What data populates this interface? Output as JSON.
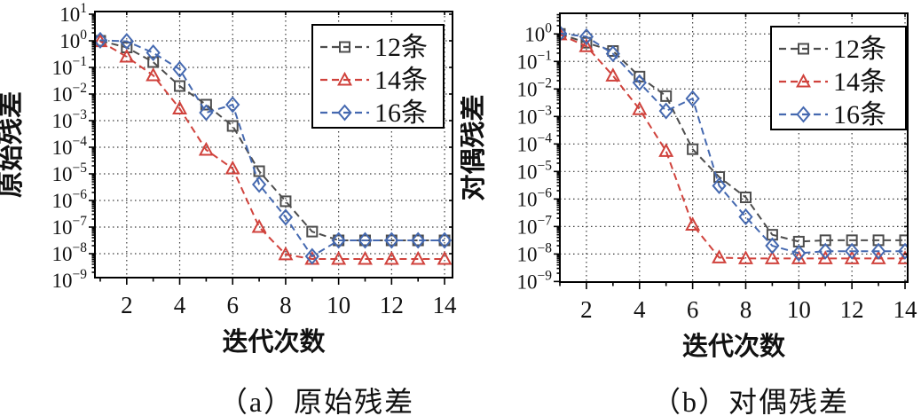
{
  "figure_title": "",
  "colors": {
    "background": "#ffffff",
    "axis": "#000000",
    "grid": "#1a1a1a",
    "series_12": "#4d4d4d",
    "series_14": "#d0423c",
    "series_16": "#4569b0",
    "text": "#111111"
  },
  "chart_data": [
    {
      "type": "line",
      "id": "primal-residual",
      "caption": "（a）原始残差",
      "xlabel": "迭代次数",
      "ylabel": "原始残差",
      "x": [
        1,
        2,
        3,
        4,
        5,
        6,
        7,
        8,
        9,
        10,
        11,
        12,
        13,
        14
      ],
      "x_ticks": [
        2,
        4,
        6,
        8,
        10,
        12,
        14
      ],
      "y_tick_exponents": [
        1,
        0,
        -1,
        -2,
        -3,
        -4,
        -5,
        -6,
        -7,
        -8,
        -9
      ],
      "y_scale": "log10",
      "ylim_log10": [
        -8.9,
        1.1
      ],
      "xlim": [
        0.8,
        14.3
      ],
      "grid": "dotted",
      "legend_position": "top-right",
      "series": [
        {
          "name": "12条",
          "marker": "square",
          "color": "#4d4d4d",
          "linestyle": "dashed",
          "values_log10": [
            0,
            -0.25,
            -0.8,
            -1.7,
            -2.4,
            -3.2,
            -4.9,
            -6.03,
            -7.17,
            -7.5,
            -7.5,
            -7.5,
            -7.5,
            -7.5
          ]
        },
        {
          "name": "14条",
          "marker": "triangle",
          "color": "#d0423c",
          "linestyle": "dashed",
          "values_log10": [
            -0.02,
            -0.6,
            -1.3,
            -2.55,
            -4.1,
            -4.8,
            -7.0,
            -8.03,
            -8.2,
            -8.2,
            -8.2,
            -8.2,
            -8.2,
            -8.2
          ]
        },
        {
          "name": "16条",
          "marker": "diamond",
          "color": "#4569b0",
          "linestyle": "dashed",
          "values_log10": [
            0.02,
            -0.02,
            -0.45,
            -1.07,
            -2.7,
            -2.4,
            -5.4,
            -6.63,
            -8.1,
            -7.5,
            -7.5,
            -7.5,
            -7.5,
            -7.5
          ]
        }
      ]
    },
    {
      "type": "line",
      "id": "dual-residual",
      "caption": "（b）对偶残差",
      "xlabel": "迭代次数",
      "ylabel": "对偶残差",
      "x": [
        1,
        2,
        3,
        4,
        5,
        6,
        7,
        8,
        9,
        10,
        11,
        12,
        13,
        14
      ],
      "x_ticks": [
        2,
        4,
        6,
        8,
        10,
        12,
        14
      ],
      "y_tick_exponents": [
        0,
        -1,
        -2,
        -3,
        -4,
        -5,
        -6,
        -7,
        -8,
        -9
      ],
      "y_scale": "log10",
      "ylim_log10": [
        -9.02,
        0.75
      ],
      "xlim": [
        1.0,
        14.1
      ],
      "grid": "dotted",
      "legend_position": "top-right",
      "series": [
        {
          "name": "12条",
          "marker": "square",
          "color": "#4d4d4d",
          "linestyle": "dashed",
          "values_log10": [
            0,
            -0.32,
            -0.62,
            -1.55,
            -2.26,
            -4.19,
            -5.2,
            -5.94,
            -7.3,
            -7.55,
            -7.5,
            -7.5,
            -7.5,
            -7.5
          ]
        },
        {
          "name": "14条",
          "marker": "triangle",
          "color": "#d0423c",
          "linestyle": "dashed",
          "values_log10": [
            -0.02,
            -0.45,
            -1.52,
            -2.74,
            -4.26,
            -6.94,
            -8.13,
            -8.16,
            -8.16,
            -8.16,
            -8.16,
            -8.16,
            -8.16,
            -8.16
          ]
        },
        {
          "name": "16条",
          "marker": "diamond",
          "color": "#4569b0",
          "linestyle": "dashed",
          "values_log10": [
            0.02,
            -0.1,
            -0.72,
            -1.77,
            -2.8,
            -2.35,
            -5.52,
            -6.65,
            -7.7,
            -7.97,
            -7.9,
            -7.9,
            -7.9,
            -7.9
          ]
        }
      ]
    }
  ]
}
